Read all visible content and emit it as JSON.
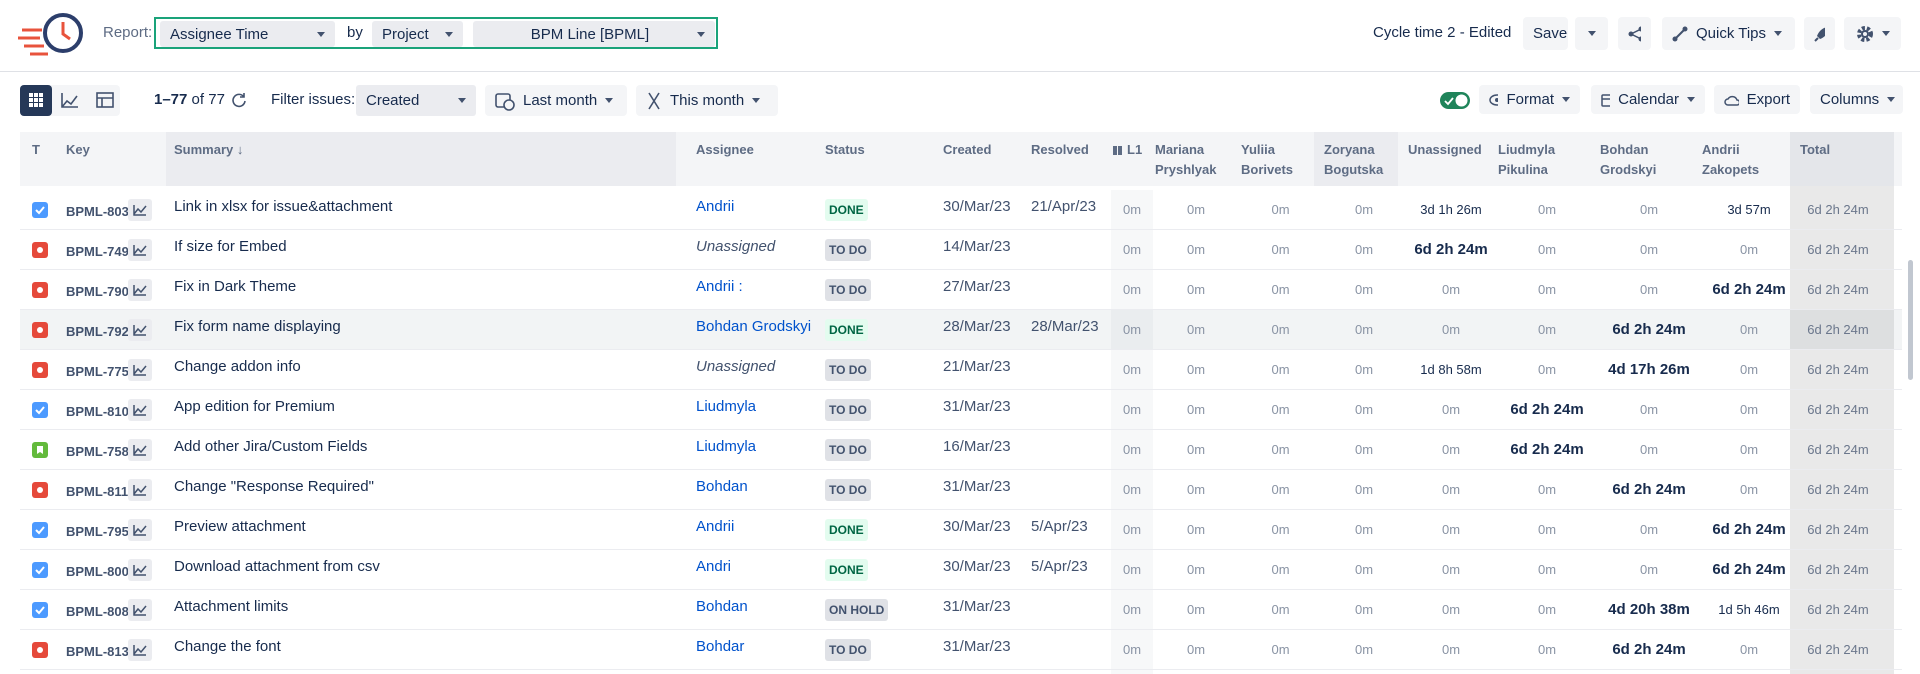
{
  "header": {
    "report_label": "Report:",
    "report_type": "Assignee Time",
    "by": "by",
    "group": "Project",
    "project": "BPM Line [BPML]",
    "config_name": "Cycle time 2 - Edited",
    "save": "Save",
    "quick_tips": "Quick Tips"
  },
  "toolbar": {
    "range": "1–77",
    "of": "of 77",
    "filter_label": "Filter issues:",
    "filter_field": "Created",
    "period_from": "Last month",
    "period_to": "This month",
    "format": "Format",
    "calendar": "Calendar",
    "export": "Export",
    "columns": "Columns"
  },
  "table": {
    "columns": [
      "T",
      "Key",
      "Summary",
      "Assignee",
      "Status",
      "Created",
      "Resolved",
      "L1",
      "Mariana Pryshlyak",
      "Yuliia Borivets",
      "Zoryana Bogutska",
      "Unassigned",
      "Liudmyla Pikulina",
      "Bohdan Grodskyi",
      "Andrii Zakopets",
      "Total"
    ],
    "rows": [
      {
        "type": "task",
        "key": "BPML-803",
        "summary": "Link in xlsx for issue&attachment",
        "assignee": "Andrii",
        "status": "DONE",
        "created": "30/Mar/23",
        "resolved": "21/Apr/23",
        "times": [
          "0m",
          "0m",
          "0m",
          "0m",
          "3d 1h 26m",
          "0m",
          "0m",
          "3d 57m"
        ],
        "emphasis": null,
        "total": "6d 2h 24m"
      },
      {
        "type": "bug",
        "key": "BPML-749",
        "summary": "If size for Embed",
        "assignee": "Unassigned",
        "status": "TO DO",
        "created": "14/Mar/23",
        "resolved": null,
        "times": [
          "0m",
          "0m",
          "0m",
          "0m",
          "6d 2h 24m",
          "0m",
          "0m",
          "0m"
        ],
        "emphasis": 4,
        "total": "6d 2h 24m"
      },
      {
        "type": "bug",
        "key": "BPML-790",
        "summary": "Fix in Dark Theme",
        "assignee": "Andrii :",
        "status": "TO DO",
        "created": "27/Mar/23",
        "resolved": null,
        "times": [
          "0m",
          "0m",
          "0m",
          "0m",
          "0m",
          "0m",
          "0m",
          "6d 2h 24m"
        ],
        "emphasis": 7,
        "total": "6d 2h 24m"
      },
      {
        "type": "bug",
        "key": "BPML-792",
        "summary": "Fix form name displaying",
        "assignee": "Bohdan Grodskyi",
        "status": "DONE",
        "created": "28/Mar/23",
        "resolved": "28/Mar/23",
        "times": [
          "0m",
          "0m",
          "0m",
          "0m",
          "0m",
          "0m",
          "6d 2h 24m",
          "0m"
        ],
        "emphasis": 6,
        "total": "6d 2h 24m"
      },
      {
        "type": "bug",
        "key": "BPML-775",
        "summary": "Change addon info",
        "assignee": "Unassigned",
        "status": "TO DO",
        "created": "21/Mar/23",
        "resolved": null,
        "times": [
          "0m",
          "0m",
          "0m",
          "0m",
          "1d 8h 58m",
          "0m",
          "4d 17h 26m",
          "0m"
        ],
        "emphasis": 6,
        "total": "6d 2h 24m"
      },
      {
        "type": "task",
        "key": "BPML-810",
        "summary": "App edition for Premium",
        "assignee": "Liudmyla",
        "status": "TO DO",
        "created": "31/Mar/23",
        "resolved": null,
        "times": [
          "0m",
          "0m",
          "0m",
          "0m",
          "0m",
          "6d 2h 24m",
          "0m",
          "0m"
        ],
        "emphasis": 5,
        "total": "6d 2h 24m"
      },
      {
        "type": "story",
        "key": "BPML-758",
        "summary": "Add other Jira/Custom Fields",
        "assignee": "Liudmyla",
        "status": "TO DO",
        "created": "16/Mar/23",
        "resolved": null,
        "times": [
          "0m",
          "0m",
          "0m",
          "0m",
          "0m",
          "6d 2h 24m",
          "0m",
          "0m"
        ],
        "emphasis": 5,
        "total": "6d 2h 24m"
      },
      {
        "type": "bug",
        "key": "BPML-811",
        "summary": "Change \"Response Required\"",
        "assignee": "Bohdan",
        "status": "TO DO",
        "created": "31/Mar/23",
        "resolved": null,
        "times": [
          "0m",
          "0m",
          "0m",
          "0m",
          "0m",
          "0m",
          "6d 2h 24m",
          "0m"
        ],
        "emphasis": 6,
        "total": "6d 2h 24m"
      },
      {
        "type": "task",
        "key": "BPML-795",
        "summary": "Preview attachment",
        "assignee": "Andrii",
        "status": "DONE",
        "created": "30/Mar/23",
        "resolved": "5/Apr/23",
        "times": [
          "0m",
          "0m",
          "0m",
          "0m",
          "0m",
          "0m",
          "0m",
          "6d 2h 24m"
        ],
        "emphasis": 7,
        "total": "6d 2h 24m"
      },
      {
        "type": "task",
        "key": "BPML-800",
        "summary": "Download attachment from csv",
        "assignee": "Andri",
        "status": "DONE",
        "created": "30/Mar/23",
        "resolved": "5/Apr/23",
        "times": [
          "0m",
          "0m",
          "0m",
          "0m",
          "0m",
          "0m",
          "0m",
          "6d 2h 24m"
        ],
        "emphasis": 7,
        "total": "6d 2h 24m"
      },
      {
        "type": "task",
        "key": "BPML-808",
        "summary": "Attachment limits",
        "assignee": "Bohdan",
        "status": "ON HOLD",
        "created": "31/Mar/23",
        "resolved": null,
        "times": [
          "0m",
          "0m",
          "0m",
          "0m",
          "0m",
          "0m",
          "4d 20h 38m",
          "1d 5h 46m"
        ],
        "emphasis": 6,
        "total": "6d 2h 24m"
      },
      {
        "type": "bug",
        "key": "BPML-813",
        "summary": "Change the font",
        "assignee": "Bohdar",
        "status": "TO DO",
        "created": "31/Mar/23",
        "resolved": null,
        "times": [
          "0m",
          "0m",
          "0m",
          "0m",
          "0m",
          "0m",
          "6d 2h 24m",
          "0m"
        ],
        "emphasis": 6,
        "total": "6d 2h 24m"
      }
    ]
  }
}
